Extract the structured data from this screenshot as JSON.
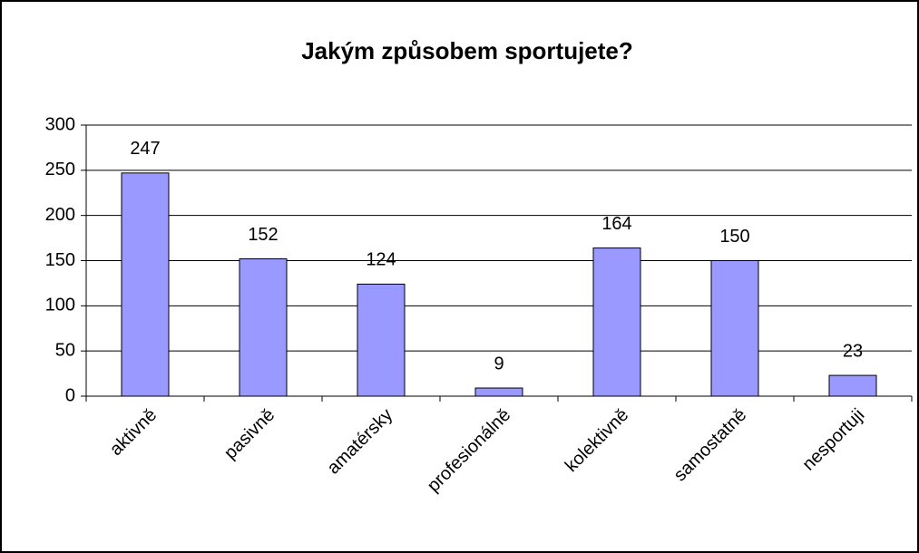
{
  "chart_data": {
    "type": "bar",
    "title": "Jakým způsobem sportujete?",
    "categories": [
      "aktivně",
      "pasivně",
      "amatérsky",
      "profesionálně",
      "kolektivně",
      "samostatně",
      "nesportuji"
    ],
    "values": [
      247,
      152,
      124,
      9,
      164,
      150,
      23
    ],
    "color": "#9999ff",
    "ylim": [
      0,
      300
    ],
    "yticks": [
      0,
      50,
      100,
      150,
      200,
      250,
      300
    ],
    "grid": true,
    "data_labels": true
  }
}
